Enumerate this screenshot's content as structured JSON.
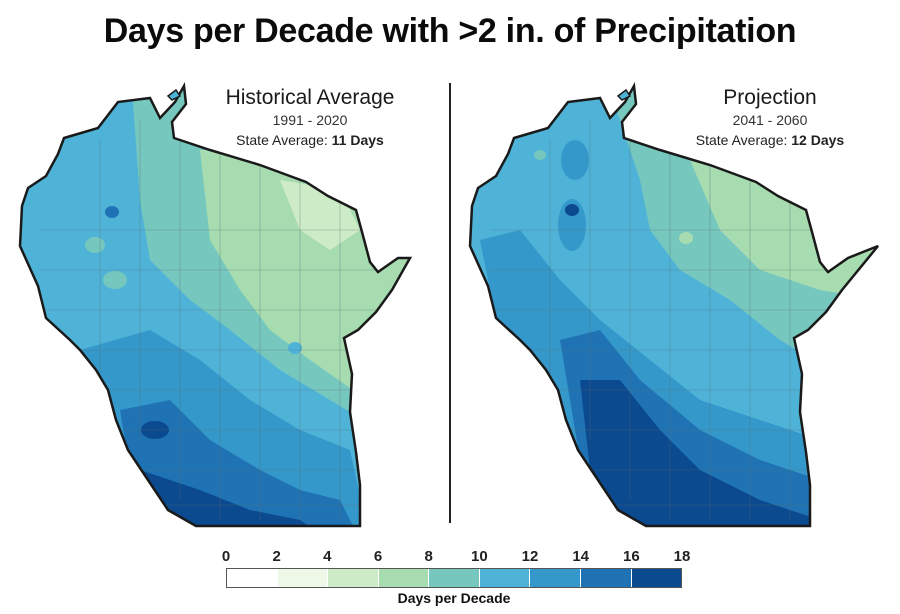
{
  "title": "Days per Decade with >2 in. of Precipitation",
  "maps": [
    {
      "title": "Historical Average",
      "period": "1991 - 2020",
      "avg_label": "State Average: ",
      "avg_value": "11 Days"
    },
    {
      "title": "Projection",
      "period": "2041 - 2060",
      "avg_label": "State Average: ",
      "avg_value": "12 Days"
    }
  ],
  "legend": {
    "ticks": [
      "0",
      "2",
      "4",
      "6",
      "8",
      "10",
      "12",
      "14",
      "16",
      "18"
    ],
    "colors": [
      "#ffffff",
      "#edf8e9",
      "#cdebc6",
      "#a7dbb0",
      "#76c8bf",
      "#4fb3d8",
      "#3598cb",
      "#1f73b4",
      "#0b4a8f"
    ],
    "caption": "Days per Decade"
  }
}
